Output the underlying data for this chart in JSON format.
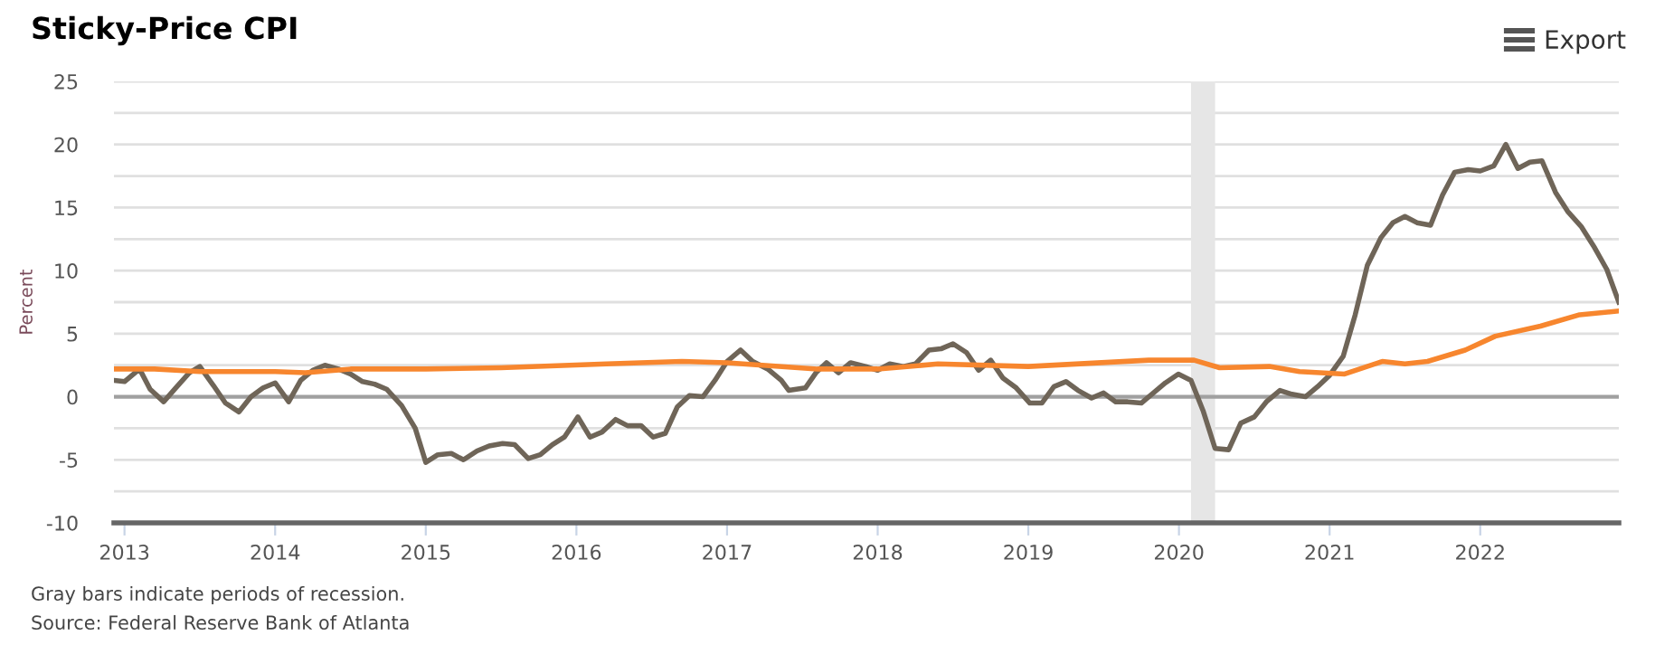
{
  "chart_data": {
    "type": "line",
    "title": "Sticky-Price CPI",
    "ylabel": "Percent",
    "annotations": [
      "Export",
      "Gray bars indicate periods of recession.",
      "Source: Federal Reserve Bank of Atlanta"
    ],
    "xlim": [
      2012.93,
      2022.92
    ],
    "xticks": [
      {
        "value": 2013,
        "label": "2013"
      },
      {
        "value": 2014,
        "label": "2014"
      },
      {
        "value": 2015,
        "label": "2015"
      },
      {
        "value": 2016,
        "label": "2016"
      },
      {
        "value": 2017,
        "label": "2017"
      },
      {
        "value": 2018,
        "label": "2018"
      },
      {
        "value": 2019,
        "label": "2019"
      },
      {
        "value": 2020,
        "label": "2020"
      },
      {
        "value": 2021,
        "label": "2021"
      },
      {
        "value": 2022,
        "label": "2022"
      }
    ],
    "ylim": [
      -10,
      25
    ],
    "yticks": [
      -10,
      {
        "value": -7.5,
        "label": null
      },
      -5,
      {
        "value": -2.5,
        "label": null
      },
      0,
      {
        "value": 2.5,
        "label": null
      },
      5,
      {
        "value": 7.5,
        "label": null
      },
      10,
      {
        "value": 12.5,
        "label": null
      },
      15,
      {
        "value": 17.5,
        "label": null
      },
      20,
      {
        "value": 22.5,
        "label": null
      },
      25
    ],
    "grid": "y",
    "marker": "none",
    "line_style": "solid",
    "bands": [
      {
        "axis": "x",
        "from": 2020.08,
        "to": 2020.24,
        "color": "#e6e6e6"
      }
    ],
    "ref_lines": [
      {
        "axis": "y",
        "value": 0,
        "color": "#a0a0a0"
      }
    ],
    "series": [
      {
        "color": "#6f6558",
        "x": [
          2012.93,
          2013.0,
          2013.1,
          2013.17,
          2013.26,
          2013.34,
          2013.43,
          2013.5,
          2013.59,
          2013.67,
          2013.76,
          2013.84,
          2013.92,
          2014.0,
          2014.09,
          2014.17,
          2014.25,
          2014.33,
          2014.42,
          2014.5,
          2014.58,
          2014.66,
          2014.74,
          2014.84,
          2014.93,
          2015.0,
          2015.08,
          2015.17,
          2015.25,
          2015.34,
          2015.42,
          2015.51,
          2015.59,
          2015.68,
          2015.76,
          2015.84,
          2015.92,
          2016.01,
          2016.09,
          2016.17,
          2016.26,
          2016.34,
          2016.43,
          2016.51,
          2016.59,
          2016.67,
          2016.75,
          2016.84,
          2016.92,
          2017.0,
          2017.09,
          2017.17,
          2017.27,
          2017.36,
          2017.41,
          2017.52,
          2017.59,
          2017.66,
          2017.74,
          2017.82,
          2017.92,
          2018.0,
          2018.08,
          2018.17,
          2018.25,
          2018.34,
          2018.42,
          2018.5,
          2018.59,
          2018.67,
          2018.75,
          2018.83,
          2018.92,
          2019.01,
          2019.09,
          2019.17,
          2019.25,
          2019.33,
          2019.42,
          2019.5,
          2019.58,
          2019.66,
          2019.75,
          2019.83,
          2019.91,
          2019.996,
          2020.08,
          2020.16,
          2020.24,
          2020.33,
          2020.41,
          2020.5,
          2020.58,
          2020.67,
          2020.75,
          2020.84,
          2020.92,
          2021.0,
          2021.09,
          2021.17,
          2021.25,
          2021.34,
          2021.42,
          2021.5,
          2021.58,
          2021.67,
          2021.75,
          2021.83,
          2021.92,
          2022.0,
          2022.09,
          2022.17,
          2022.25,
          2022.33,
          2022.41,
          2022.5,
          2022.58,
          2022.67,
          2022.76,
          2022.84,
          2022.92
        ],
        "values": [
          1.3,
          1.2,
          2.2,
          0.6,
          -0.4,
          0.7,
          1.9,
          2.4,
          0.9,
          -0.5,
          -1.2,
          0.0,
          0.7,
          1.1,
          -0.4,
          1.3,
          2.1,
          2.5,
          2.2,
          1.8,
          1.2,
          1.0,
          0.6,
          -0.7,
          -2.5,
          -5.2,
          -4.6,
          -4.5,
          -5.0,
          -4.3,
          -3.9,
          -3.7,
          -3.8,
          -4.9,
          -4.6,
          -3.8,
          -3.2,
          -1.6,
          -3.2,
          -2.8,
          -1.8,
          -2.3,
          -2.3,
          -3.2,
          -2.9,
          -0.8,
          0.1,
          0.0,
          1.3,
          2.8,
          3.7,
          2.8,
          2.2,
          1.3,
          0.5,
          0.7,
          1.9,
          2.7,
          1.9,
          2.7,
          2.4,
          2.1,
          2.6,
          2.4,
          2.6,
          3.7,
          3.8,
          4.2,
          3.5,
          2.1,
          2.9,
          1.5,
          0.7,
          -0.5,
          -0.5,
          0.8,
          1.2,
          0.5,
          -0.1,
          0.3,
          -0.4,
          -0.4,
          -0.5,
          0.3,
          1.1,
          1.8,
          1.3,
          -1.1,
          -4.1,
          -4.2,
          -2.1,
          -1.6,
          -0.4,
          0.5,
          0.2,
          0.0,
          0.8,
          1.7,
          3.2,
          6.5,
          10.4,
          12.6,
          13.8,
          14.3,
          13.8,
          13.6,
          16.0,
          17.8,
          18.0,
          17.9,
          18.3,
          20.0,
          18.1,
          18.6,
          18.7,
          16.2,
          14.7,
          13.5,
          11.8,
          10.1,
          7.5
        ]
      },
      {
        "color": "#f7862e",
        "x": [
          2012.93,
          2013.2,
          2013.5,
          2014.0,
          2014.2,
          2014.5,
          2015.0,
          2015.5,
          2016.2,
          2016.7,
          2017.0,
          2017.6,
          2018.0,
          2018.4,
          2019.0,
          2019.8,
          2020.1,
          2020.27,
          2020.6,
          2020.8,
          2021.1,
          2021.35,
          2021.5,
          2021.65,
          2021.9,
          2022.1,
          2022.4,
          2022.66,
          2022.92
        ],
        "values": [
          2.2,
          2.2,
          2.0,
          2.0,
          1.9,
          2.2,
          2.2,
          2.3,
          2.6,
          2.8,
          2.7,
          2.2,
          2.2,
          2.6,
          2.4,
          2.9,
          2.9,
          2.3,
          2.4,
          2.0,
          1.8,
          2.8,
          2.6,
          2.8,
          3.7,
          4.8,
          5.6,
          6.5,
          6.8
        ]
      }
    ]
  }
}
